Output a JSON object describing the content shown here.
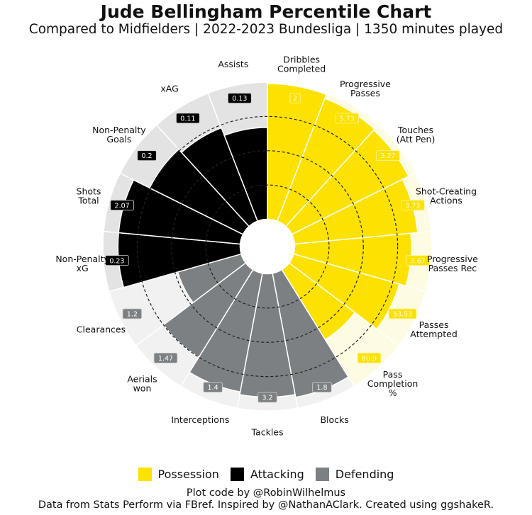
{
  "chart_data": {
    "type": "polar-bar",
    "title": "Jude Bellingham Percentile Chart",
    "subtitle": "Compared to Midfielders | 2022-2023 Bundesliga | 1350 minutes played",
    "rlim": [
      0,
      100
    ],
    "gridlines": [
      25,
      50,
      75
    ],
    "legend_position": "bottom",
    "groups": [
      {
        "name": "Possession",
        "color": "#FDE100",
        "background": "#FDFBE1"
      },
      {
        "name": "Attacking",
        "color": "#000000",
        "background": "#E3E3E3"
      },
      {
        "name": "Defending",
        "color": "#7C8082",
        "background": "#F0F1F0"
      }
    ],
    "metrics": [
      {
        "label": "Dribbles\nCompleted",
        "group": 0,
        "percentile": 99,
        "value": "2"
      },
      {
        "label": "Progressive\nPasses",
        "group": 0,
        "percentile": 96,
        "value": "5.73"
      },
      {
        "label": "Touches\n(Att Pen)",
        "group": 0,
        "percentile": 95,
        "value": "3.27"
      },
      {
        "label": "Shot-Creating\nActions",
        "group": 0,
        "percentile": 90,
        "value": "3.73"
      },
      {
        "label": "Progressive\nPasses Rec",
        "group": 0,
        "percentile": 85,
        "value": "3.67"
      },
      {
        "label": "Passes\nAttempted",
        "group": 0,
        "percentile": 80,
        "value": "53.53"
      },
      {
        "label": "Pass\nCompletion\n%",
        "group": 0,
        "percentile": 60,
        "value": "80.9"
      },
      {
        "label": "Blocks",
        "group": 2,
        "percentile": 92,
        "value": "1.8"
      },
      {
        "label": "Tackles",
        "group": 2,
        "percentile": 90,
        "value": "3.2"
      },
      {
        "label": "Interceptions",
        "group": 2,
        "percentile": 88,
        "value": "1.4"
      },
      {
        "label": "Aerials\nwon",
        "group": 2,
        "percentile": 75,
        "value": "1.47"
      },
      {
        "label": "Clearances",
        "group": 2,
        "percentile": 48,
        "value": "1.2"
      },
      {
        "label": "Non-Penalty\nxG",
        "group": 1,
        "percentile": 89,
        "value": "0.23"
      },
      {
        "label": "Shots\nTotal",
        "group": 1,
        "percentile": 89,
        "value": "2.07"
      },
      {
        "label": "Non-Penalty\nGoals",
        "group": 1,
        "percentile": 76,
        "value": "0.2"
      },
      {
        "label": "xAG",
        "group": 1,
        "percentile": 73,
        "value": "0.11"
      },
      {
        "label": "Assists",
        "group": 1,
        "percentile": 67,
        "value": "0.13"
      }
    ]
  },
  "footer": {
    "line1": "Plot code by @RobinWilhelmus",
    "line2": "Data from Stats Perform via FBref. Inspired by @NathanAClark. Created using ggshakeR."
  }
}
